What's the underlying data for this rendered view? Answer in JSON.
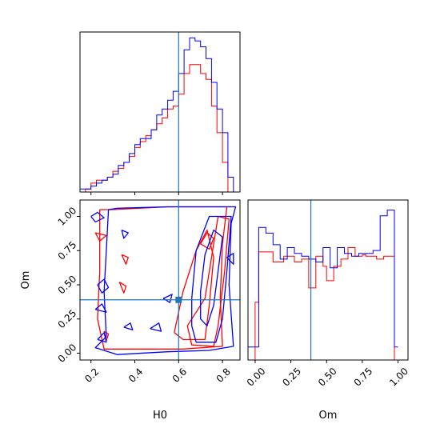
{
  "chart_data": {
    "type": "corner",
    "colors": {
      "red": "#ff0000",
      "blue": "#0000ff",
      "truth": "#1f77b4"
    },
    "parameters": [
      "H0",
      "Om"
    ],
    "truth": {
      "H0": 0.6,
      "Om": 0.39
    },
    "panels": [
      {
        "id": "hist-h0",
        "type": "histogram",
        "param": "H0",
        "xlim": [
          0.15,
          0.88
        ],
        "bin_edges": [
          0.15,
          0.175,
          0.2,
          0.225,
          0.25,
          0.275,
          0.3,
          0.325,
          0.35,
          0.375,
          0.4,
          0.425,
          0.45,
          0.475,
          0.5,
          0.525,
          0.55,
          0.575,
          0.6,
          0.625,
          0.65,
          0.675,
          0.7,
          0.725,
          0.75,
          0.775,
          0.8,
          0.825,
          0.85,
          0.875
        ],
        "series": [
          {
            "name": "red",
            "color": "#ff0000",
            "values": [
              0,
              1,
              3,
              4,
              4,
              5,
              7,
              8,
              10,
              12,
              15,
              17,
              19,
              21,
              23,
              25,
              28,
              29,
              33,
              40,
              43,
              43,
              40,
              38,
              29,
              20,
              10,
              0,
              0
            ]
          },
          {
            "name": "blue",
            "color": "#0000ff",
            "values": [
              1,
              1,
              2,
              3,
              4,
              5,
              6,
              9,
              10,
              13,
              16,
              18,
              18,
              21,
              26,
              28,
              31,
              34,
              40,
              48,
              52,
              51,
              49,
              45,
              37,
              28,
              20,
              5,
              0
            ]
          }
        ]
      },
      {
        "id": "contour-h0-om",
        "type": "contour",
        "xparam": "H0",
        "yparam": "Om",
        "xlim": [
          0.15,
          0.88
        ],
        "ylim": [
          -0.05,
          1.12
        ],
        "xticks": [
          "0.2",
          "0.4",
          "0.6",
          "0.8"
        ],
        "yticks": [
          "0.00",
          "0.25",
          "0.50",
          "0.75",
          "1.00"
        ],
        "xlabel": "H0",
        "ylabel": "Om",
        "series": [
          {
            "name": "red",
            "color": "#ff0000",
            "contours": [
              [
                [
                  0.24,
                  1.05
                ],
                [
                  0.24,
                  0.6
                ],
                [
                  0.23,
                  0.25
                ],
                [
                  0.26,
                  0.03
                ],
                [
                  0.62,
                  0.03
                ],
                [
                  0.8,
                  0.05
                ],
                [
                  0.79,
                  0.4
                ],
                [
                  0.8,
                  0.8
                ],
                [
                  0.82,
                  1.07
                ],
                [
                  0.55,
                  1.07
                ],
                [
                  0.3,
                  1.05
                ],
                [
                  0.24,
                  1.05
                ]
              ],
              [
                [
                  0.72,
                  0.4
                ],
                [
                  0.75,
                  0.7
                ],
                [
                  0.78,
                  1.0
                ],
                [
                  0.83,
                  0.98
                ],
                [
                  0.81,
                  0.6
                ],
                [
                  0.78,
                  0.2
                ],
                [
                  0.76,
                  0.05
                ],
                [
                  0.66,
                  0.06
                ],
                [
                  0.64,
                  0.2
                ],
                [
                  0.68,
                  0.3
                ],
                [
                  0.72,
                  0.4
                ]
              ],
              [
                [
                  0.58,
                  0.15
                ],
                [
                  0.62,
                  0.45
                ],
                [
                  0.68,
                  0.75
                ],
                [
                  0.73,
                  0.9
                ],
                [
                  0.76,
                  0.7
                ],
                [
                  0.74,
                  0.35
                ],
                [
                  0.72,
                  0.1
                ],
                [
                  0.62,
                  0.1
                ],
                [
                  0.58,
                  0.15
                ]
              ],
              [
                [
                  0.7,
                  0.8
                ],
                [
                  0.73,
                  0.88
                ],
                [
                  0.76,
                  0.84
                ],
                [
                  0.74,
                  0.76
                ],
                [
                  0.7,
                  0.8
                ]
              ],
              [
                [
                  0.22,
                  0.88
                ],
                [
                  0.27,
                  0.86
                ],
                [
                  0.24,
                  0.82
                ],
                [
                  0.22,
                  0.88
                ]
              ],
              [
                [
                  0.34,
                  0.72
                ],
                [
                  0.37,
                  0.7
                ],
                [
                  0.36,
                  0.65
                ],
                [
                  0.34,
                  0.72
                ]
              ],
              [
                [
                  0.33,
                  0.52
                ],
                [
                  0.36,
                  0.49
                ],
                [
                  0.35,
                  0.44
                ],
                [
                  0.33,
                  0.52
                ]
              ],
              [
                [
                  0.26,
                  0.16
                ],
                [
                  0.28,
                  0.14
                ],
                [
                  0.27,
                  0.09
                ],
                [
                  0.26,
                  0.16
                ]
              ]
            ]
          },
          {
            "name": "blue",
            "color": "#0000ff",
            "contours": [
              [
                [
                  0.28,
                  1.05
                ],
                [
                  0.27,
                  0.75
                ],
                [
                  0.26,
                  0.45
                ],
                [
                  0.27,
                  0.12
                ],
                [
                  0.22,
                  0.04
                ],
                [
                  0.32,
                  -0.01
                ],
                [
                  0.55,
                  0.01
                ],
                [
                  0.74,
                  0.02
                ],
                [
                  0.85,
                  0.05
                ],
                [
                  0.83,
                  0.5
                ],
                [
                  0.84,
                  0.95
                ],
                [
                  0.86,
                  1.07
                ],
                [
                  0.55,
                  1.07
                ],
                [
                  0.32,
                  1.06
                ],
                [
                  0.28,
                  1.05
                ]
              ],
              [
                [
                  0.66,
                  0.4
                ],
                [
                  0.68,
                  0.75
                ],
                [
                  0.74,
                  1.0
                ],
                [
                  0.84,
                  1.0
                ],
                [
                  0.82,
                  0.6
                ],
                [
                  0.8,
                  0.25
                ],
                [
                  0.77,
                  0.08
                ],
                [
                  0.68,
                  0.08
                ],
                [
                  0.66,
                  0.2
                ],
                [
                  0.66,
                  0.4
                ]
              ],
              [
                [
                  0.7,
                  0.45
                ],
                [
                  0.72,
                  0.72
                ],
                [
                  0.76,
                  0.9
                ],
                [
                  0.8,
                  0.85
                ],
                [
                  0.78,
                  0.6
                ],
                [
                  0.76,
                  0.35
                ],
                [
                  0.73,
                  0.2
                ],
                [
                  0.7,
                  0.25
                ],
                [
                  0.7,
                  0.45
                ]
              ],
              [
                [
                  0.2,
                  1.0
                ],
                [
                  0.23,
                  1.03
                ],
                [
                  0.26,
                  0.99
                ],
                [
                  0.22,
                  0.96
                ],
                [
                  0.2,
                  1.0
                ]
              ],
              [
                [
                  0.34,
                  0.9
                ],
                [
                  0.37,
                  0.88
                ],
                [
                  0.35,
                  0.84
                ],
                [
                  0.34,
                  0.9
                ]
              ],
              [
                [
                  0.23,
                  0.5
                ],
                [
                  0.26,
                  0.54
                ],
                [
                  0.28,
                  0.48
                ],
                [
                  0.25,
                  0.44
                ],
                [
                  0.23,
                  0.5
                ]
              ],
              [
                [
                  0.22,
                  0.32
                ],
                [
                  0.25,
                  0.36
                ],
                [
                  0.27,
                  0.3
                ],
                [
                  0.22,
                  0.32
                ]
              ],
              [
                [
                  0.23,
                  0.1
                ],
                [
                  0.26,
                  0.15
                ],
                [
                  0.27,
                  0.08
                ],
                [
                  0.23,
                  0.1
                ]
              ],
              [
                [
                  0.53,
                  0.4
                ],
                [
                  0.57,
                  0.43
                ],
                [
                  0.56,
                  0.37
                ],
                [
                  0.53,
                  0.4
                ]
              ],
              [
                [
                  0.47,
                  0.18
                ],
                [
                  0.51,
                  0.22
                ],
                [
                  0.52,
                  0.16
                ],
                [
                  0.47,
                  0.18
                ]
              ],
              [
                [
                  0.35,
                  0.19
                ],
                [
                  0.38,
                  0.22
                ],
                [
                  0.39,
                  0.17
                ],
                [
                  0.35,
                  0.19
                ]
              ],
              [
                [
                  0.82,
                  0.7
                ],
                [
                  0.85,
                  0.73
                ],
                [
                  0.85,
                  0.65
                ],
                [
                  0.82,
                  0.7
                ]
              ]
            ]
          }
        ]
      },
      {
        "id": "hist-om",
        "type": "histogram",
        "param": "Om",
        "xlim": [
          -0.05,
          1.07
        ],
        "xticks": [
          "0.00",
          "0.25",
          "0.50",
          "0.75",
          "1.00"
        ],
        "xlabel": "Om",
        "bin_edges": [
          -0.05,
          0.0,
          0.025,
          0.05,
          0.075,
          0.1,
          0.125,
          0.15,
          0.175,
          0.2,
          0.225,
          0.25,
          0.275,
          0.3,
          0.325,
          0.35,
          0.375,
          0.4,
          0.425,
          0.45,
          0.475,
          0.5,
          0.525,
          0.55,
          0.575,
          0.6,
          0.625,
          0.65,
          0.675,
          0.7,
          0.725,
          0.75,
          0.775,
          0.8,
          0.825,
          0.85,
          0.875,
          0.9,
          0.925,
          0.95,
          0.975,
          1.0,
          1.07
        ],
        "series": [
          {
            "name": "red",
            "color": "#ff0000",
            "values": [
              0,
              0.4,
              0.75,
              0.75,
              0.75,
              0.75,
              0.68,
              0.68,
              0.68,
              0.72,
              0.72,
              0.72,
              0.68,
              0.68,
              0.7,
              0.7,
              0.5,
              0.5,
              0.72,
              0.72,
              0.65,
              0.55,
              0.55,
              0.65,
              0.65,
              0.7,
              0.7,
              0.78,
              0.78,
              0.72,
              0.72,
              0.73,
              0.72,
              0.72,
              0.72,
              0.7,
              0.7,
              0.72,
              0.72,
              0.72,
              0.0
            ]
          },
          {
            "name": "blue",
            "color": "#0000ff",
            "values": [
              0.09,
              0.09,
              0.92,
              0.92,
              0.88,
              0.88,
              0.8,
              0.8,
              0.7,
              0.7,
              0.78,
              0.78,
              0.74,
              0.74,
              0.72,
              0.72,
              0.7,
              0.7,
              0.68,
              0.68,
              0.78,
              0.78,
              0.64,
              0.64,
              0.78,
              0.78,
              0.74,
              0.74,
              0.72,
              0.72,
              0.74,
              0.74,
              0.74,
              0.74,
              0.76,
              0.76,
              1.0,
              1.0,
              1.04,
              1.04,
              0.09
            ]
          }
        ]
      }
    ]
  }
}
